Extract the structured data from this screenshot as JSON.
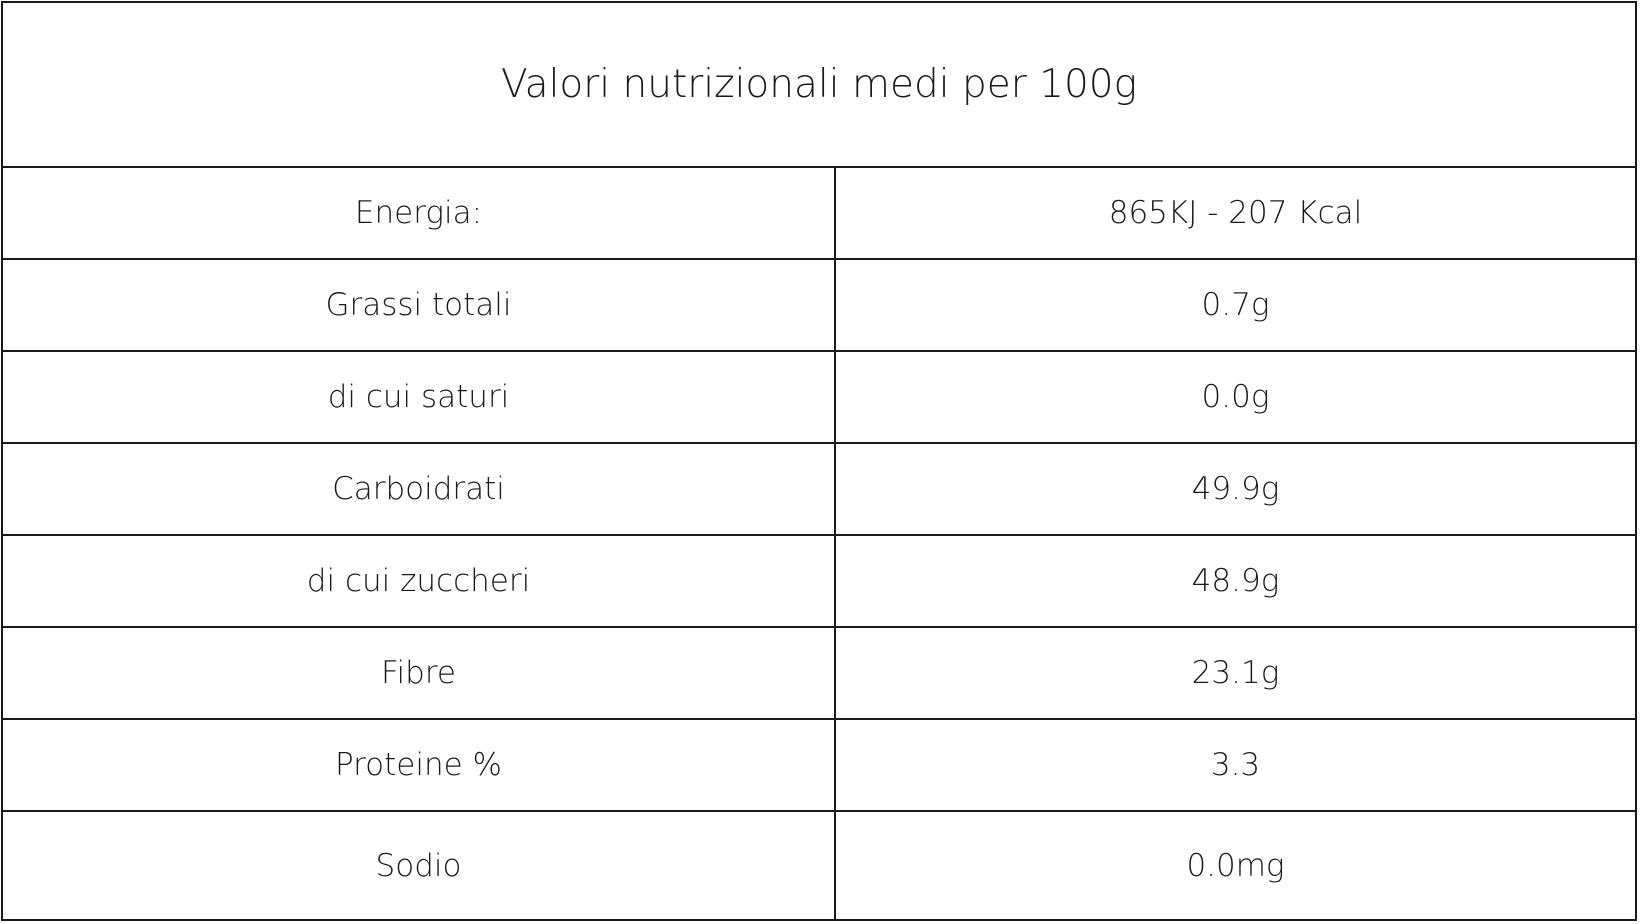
{
  "table": {
    "title": "Valori nutrizionali medi per 100g",
    "rows": [
      [
        "Energia:",
        "865KJ - 207 Kcal"
      ],
      [
        "Grassi totali",
        "0.7g"
      ],
      [
        "di cui saturi",
        "0.0g"
      ],
      [
        "Carboidrati",
        "49.9g"
      ],
      [
        "di cui zuccheri",
        "48.9g"
      ],
      [
        "Fibre",
        "23.1g"
      ],
      [
        "Proteine %",
        "3.3"
      ],
      [
        "Sodio",
        "0.0mg"
      ]
    ]
  }
}
